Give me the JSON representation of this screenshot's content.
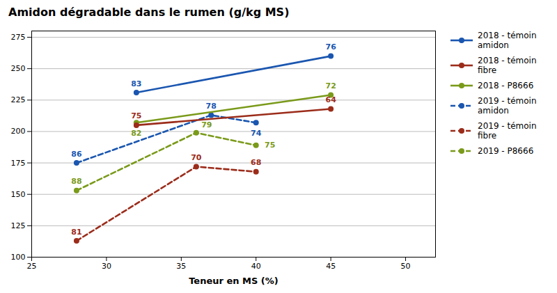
{
  "chart_data": {
    "type": "line",
    "title": "Amidon dégradable dans le rumen (g/kg MS)",
    "xlabel": "Teneur en MS (%)",
    "xlim": [
      25,
      52
    ],
    "ylim": [
      100,
      280
    ],
    "xticks": [
      25,
      30,
      35,
      40,
      45,
      50
    ],
    "yticks": [
      100,
      125,
      150,
      175,
      200,
      225,
      250,
      275
    ],
    "grid": "y",
    "legend": "right",
    "series": [
      {
        "name": "2018 - témoin\namidon",
        "color": "#1a56b0",
        "line_style": "solid",
        "marker": "circle",
        "x": [
          32,
          45
        ],
        "values": [
          231,
          260
        ],
        "annotations": [
          "83",
          "76"
        ]
      },
      {
        "name": "2018 - témoin\nfibre",
        "color": "#9b2c1a",
        "line_style": "solid",
        "marker": "circle",
        "x": [
          32,
          45
        ],
        "values": [
          205,
          218
        ],
        "annotations": [
          "75",
          "64"
        ]
      },
      {
        "name": "2018 - P8666",
        "color": "#7a9a1a",
        "line_style": "solid",
        "marker": "circle",
        "x": [
          32,
          45
        ],
        "values": [
          207,
          229
        ],
        "annotations": [
          "82",
          "72"
        ]
      },
      {
        "name": "2019 - témoin\namidon",
        "color": "#1a56b0",
        "line_style": "dashed",
        "marker": "circle",
        "x": [
          28,
          37,
          40
        ],
        "values": [
          175,
          213,
          207
        ],
        "annotations": [
          "86",
          "78",
          "74"
        ]
      },
      {
        "name": "2019 - témoin\nfibre",
        "color": "#9b2c1a",
        "line_style": "dashed",
        "marker": "circle",
        "x": [
          28,
          36,
          40
        ],
        "values": [
          113,
          172,
          168
        ],
        "annotations": [
          "81",
          "70",
          "68"
        ]
      },
      {
        "name": "2019 - P8666",
        "color": "#7a9a1a",
        "line_style": "dashed",
        "marker": "circle",
        "x": [
          28,
          36,
          40
        ],
        "values": [
          153,
          199,
          189
        ],
        "annotations": [
          "88",
          "79",
          "75"
        ]
      }
    ]
  }
}
